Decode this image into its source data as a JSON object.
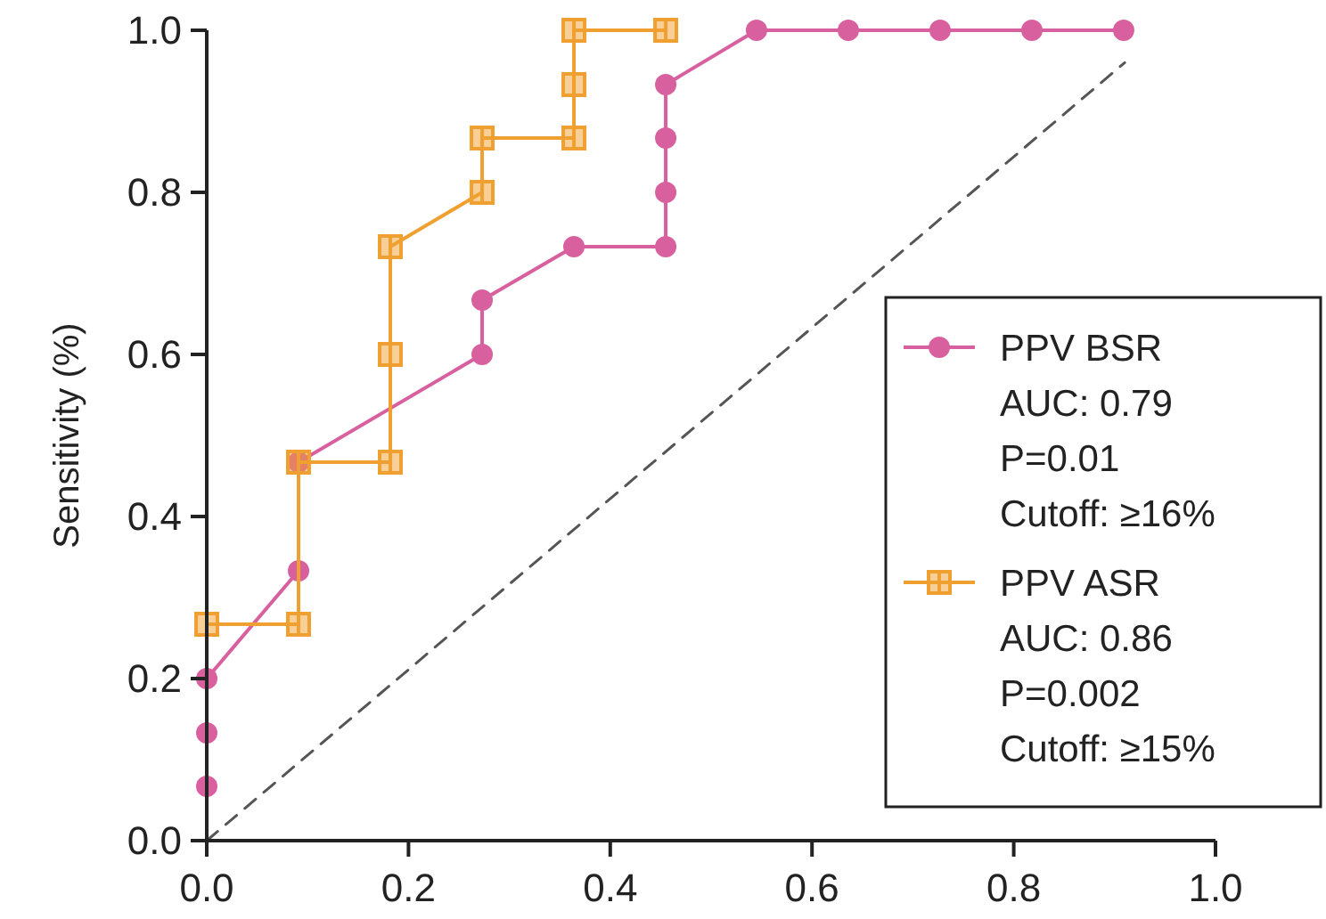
{
  "chart_data": {
    "type": "line",
    "ylabel": "Sensitivity (%)",
    "xlim": [
      0,
      1
    ],
    "ylim": [
      0,
      1
    ],
    "xticks": [
      {
        "value": 0,
        "label": "0.0"
      },
      {
        "value": 0.2,
        "label": "0.2"
      },
      {
        "value": 0.4,
        "label": "0.4"
      },
      {
        "value": 0.6,
        "label": "0.6"
      },
      {
        "value": 0.8,
        "label": "0.8"
      },
      {
        "value": 1,
        "label": "1.0"
      }
    ],
    "yticks": [
      {
        "value": 0,
        "label": "0.0"
      },
      {
        "value": 0.2,
        "label": "0.2"
      },
      {
        "value": 0.4,
        "label": "0.4"
      },
      {
        "value": 0.6,
        "label": "0.6"
      },
      {
        "value": 0.8,
        "label": "0.8"
      },
      {
        "value": 1,
        "label": "1.0"
      }
    ],
    "grid": false,
    "legend": "right",
    "annotations": [
      "AUC: 0.79",
      "P=0.01",
      "Cutoff:  ≥16%",
      "AUC: 0.86",
      "P=0.002",
      "Cutoff: ≥15%"
    ],
    "series": [
      {
        "name": "PPV BSR",
        "color": "#d9609f",
        "marker": "circle",
        "line_style": "solid",
        "x": [
          0,
          0,
          0,
          0.091,
          0.091,
          0.273,
          0.273,
          0.364,
          0.455,
          0.455,
          0.455,
          0.455,
          0.545,
          0.636,
          0.727,
          0.818,
          0.909
        ],
        "values": [
          0.067,
          0.133,
          0.2,
          0.333,
          0.467,
          0.6,
          0.667,
          0.733,
          0.733,
          0.8,
          0.867,
          0.933,
          1,
          1,
          1,
          1,
          1
        ]
      },
      {
        "name": "PPV ASR",
        "color": "#f0a030",
        "marker": "square",
        "line_style": "solid",
        "x": [
          0,
          0.091,
          0.091,
          0.182,
          0.182,
          0.182,
          0.273,
          0.273,
          0.364,
          0.364,
          0.364,
          0.455
        ],
        "values": [
          0.267,
          0.267,
          0.467,
          0.467,
          0.6,
          0.733,
          0.8,
          0.867,
          0.867,
          0.933,
          1,
          1
        ]
      },
      {
        "color": "#555555",
        "marker": "none",
        "line_style": "dashed",
        "x": [
          0,
          0.91
        ],
        "values": [
          0,
          0.96
        ]
      }
    ]
  }
}
